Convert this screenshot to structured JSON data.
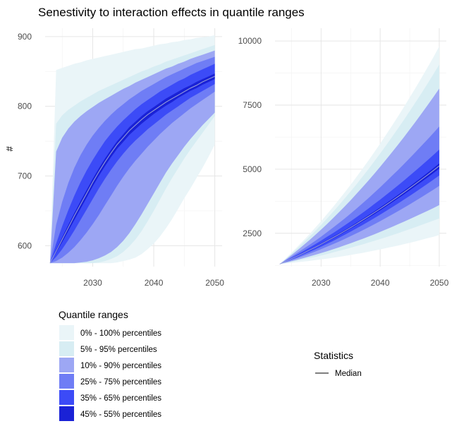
{
  "chart_data": {
    "title": "Senestivity to interaction effects in quantile ranges",
    "type": "area",
    "grid": true,
    "panels": [
      {
        "ylabel": "#",
        "xlim": [
          2022.2,
          2051.2
        ],
        "ylim": [
          570,
          912
        ],
        "x_ticks": [
          2030,
          2040,
          2050
        ],
        "y_ticks": [
          600,
          700,
          800,
          900
        ],
        "x": [
          2023,
          2024,
          2025,
          2026,
          2027,
          2028,
          2029,
          2030,
          2031,
          2032,
          2033,
          2034,
          2035,
          2036,
          2037,
          2038,
          2039,
          2040,
          2041,
          2042,
          2043,
          2044,
          2045,
          2046,
          2047,
          2048,
          2049,
          2050
        ],
        "bands": {
          "p0": [
            575,
            575,
            575,
            575,
            575,
            575,
            575,
            575,
            575,
            575,
            575,
            576,
            578,
            580,
            583,
            588,
            595,
            603,
            613,
            625,
            638,
            653,
            668,
            682,
            697,
            712,
            728,
            745
          ],
          "p5": [
            575,
            575,
            575,
            575,
            575,
            575,
            575,
            575,
            576,
            578,
            581,
            585,
            591,
            599,
            609,
            621,
            635,
            650,
            666,
            682,
            697,
            711,
            725,
            738,
            750,
            762,
            774,
            786
          ],
          "p10": [
            575,
            575,
            575,
            575,
            575,
            576,
            577,
            579,
            582,
            586,
            591,
            598,
            607,
            618,
            631,
            645,
            660,
            675,
            690,
            705,
            718,
            730,
            742,
            753,
            763,
            773,
            782,
            791
          ],
          "p25": [
            575,
            578,
            583,
            590,
            598,
            608,
            619,
            631,
            644,
            658,
            672,
            686,
            699,
            711,
            722,
            732,
            742,
            751,
            760,
            768,
            776,
            783,
            790,
            797,
            803,
            809,
            815,
            821
          ],
          "p35": [
            575,
            584,
            595,
            608,
            622,
            637,
            652,
            667,
            682,
            696,
            709,
            721,
            732,
            742,
            751,
            759,
            767,
            774,
            781,
            788,
            794,
            800,
            806,
            812,
            817,
            822,
            827,
            832
          ],
          "p45": [
            575,
            590,
            605,
            621,
            637,
            653,
            669,
            685,
            700,
            714,
            727,
            739,
            749,
            759,
            767,
            775,
            782,
            789,
            795,
            801,
            806,
            812,
            817,
            822,
            826,
            831,
            835,
            839
          ],
          "median": [
            575,
            592,
            609,
            626,
            643,
            659,
            675,
            691,
            706,
            720,
            733,
            745,
            755,
            765,
            773,
            781,
            788,
            794,
            800,
            806,
            811,
            816,
            821,
            826,
            830,
            835,
            839,
            843
          ],
          "p55": [
            575,
            594,
            612,
            630,
            647,
            664,
            680,
            696,
            711,
            725,
            738,
            750,
            760,
            770,
            778,
            786,
            793,
            799,
            805,
            811,
            816,
            821,
            826,
            830,
            835,
            839,
            843,
            847
          ],
          "p65": [
            575,
            603,
            628,
            651,
            672,
            691,
            708,
            723,
            737,
            750,
            761,
            771,
            780,
            788,
            796,
            803,
            809,
            815,
            821,
            826,
            831,
            836,
            840,
            845,
            849,
            853,
            857,
            861
          ],
          "p75": [
            575,
            630,
            663,
            690,
            712,
            730,
            745,
            758,
            769,
            779,
            788,
            796,
            803,
            810,
            816,
            822,
            827,
            832,
            837,
            842,
            846,
            850,
            854,
            858,
            862,
            865,
            868,
            871
          ],
          "p90": [
            575,
            735,
            755,
            768,
            778,
            786,
            793,
            799,
            805,
            810,
            815,
            820,
            825,
            829,
            834,
            838,
            842,
            846,
            850,
            854,
            857,
            861,
            864,
            868,
            871,
            874,
            877,
            880
          ],
          "p95": [
            575,
            775,
            787,
            795,
            801,
            807,
            812,
            817,
            822,
            826,
            830,
            834,
            838,
            842,
            846,
            850,
            853,
            857,
            860,
            864,
            867,
            870,
            873,
            876,
            879,
            882,
            885,
            888
          ],
          "p100": [
            575,
            852,
            855,
            858,
            861,
            863,
            866,
            868,
            870,
            872,
            874,
            876,
            878,
            880,
            882,
            883,
            885,
            887,
            889,
            890,
            892,
            893,
            895,
            896,
            898,
            899,
            900,
            902
          ]
        }
      },
      {
        "ylabel": "",
        "xlim": [
          2022.2,
          2051.2
        ],
        "ylim": [
          1200,
          10500
        ],
        "x_ticks": [
          2030,
          2040,
          2050
        ],
        "y_ticks": [
          2500,
          5000,
          7500,
          10000
        ],
        "x": [
          2023,
          2024,
          2025,
          2026,
          2027,
          2028,
          2029,
          2030,
          2031,
          2032,
          2033,
          2034,
          2035,
          2036,
          2037,
          2038,
          2039,
          2040,
          2041,
          2042,
          2043,
          2044,
          2045,
          2046,
          2047,
          2048,
          2049,
          2050
        ],
        "bands": {
          "p0": [
            1300,
            1320,
            1345,
            1370,
            1395,
            1420,
            1450,
            1480,
            1510,
            1545,
            1580,
            1615,
            1655,
            1695,
            1735,
            1780,
            1825,
            1870,
            1920,
            1970,
            2020,
            2075,
            2130,
            2185,
            2245,
            2305,
            2365,
            2430
          ],
          "p5": [
            1300,
            1340,
            1385,
            1430,
            1480,
            1530,
            1580,
            1635,
            1690,
            1750,
            1810,
            1870,
            1935,
            2000,
            2065,
            2135,
            2205,
            2275,
            2350,
            2425,
            2500,
            2580,
            2660,
            2740,
            2825,
            2910,
            2995,
            3080
          ],
          "p10": [
            1300,
            1355,
            1410,
            1470,
            1530,
            1595,
            1660,
            1730,
            1800,
            1875,
            1950,
            2030,
            2110,
            2195,
            2280,
            2370,
            2460,
            2555,
            2650,
            2750,
            2850,
            2950,
            3055,
            3160,
            3265,
            3375,
            3485,
            3600
          ],
          "p25": [
            1300,
            1375,
            1450,
            1530,
            1615,
            1700,
            1790,
            1880,
            1975,
            2075,
            2175,
            2280,
            2390,
            2500,
            2615,
            2730,
            2850,
            2975,
            3100,
            3230,
            3360,
            3495,
            3630,
            3770,
            3910,
            4055,
            4200,
            4350
          ],
          "p35": [
            1300,
            1390,
            1480,
            1570,
            1670,
            1770,
            1870,
            1980,
            2090,
            2200,
            2320,
            2440,
            2565,
            2690,
            2820,
            2955,
            3090,
            3230,
            3370,
            3515,
            3660,
            3810,
            3960,
            4115,
            4270,
            4430,
            4590,
            4755
          ],
          "p45": [
            1300,
            1400,
            1500,
            1600,
            1710,
            1820,
            1935,
            2050,
            2170,
            2295,
            2420,
            2550,
            2685,
            2820,
            2960,
            3100,
            3245,
            3395,
            3545,
            3700,
            3855,
            4015,
            4175,
            4340,
            4505,
            4675,
            4845,
            5020
          ],
          "median": [
            1300,
            1405,
            1510,
            1615,
            1725,
            1840,
            1955,
            2075,
            2200,
            2325,
            2455,
            2590,
            2725,
            2865,
            3010,
            3155,
            3305,
            3455,
            3610,
            3770,
            3930,
            4095,
            4260,
            4430,
            4600,
            4775,
            4950,
            5130
          ],
          "p55": [
            1300,
            1410,
            1520,
            1630,
            1745,
            1860,
            1980,
            2105,
            2230,
            2360,
            2490,
            2625,
            2765,
            2910,
            3055,
            3205,
            3355,
            3510,
            3670,
            3830,
            3995,
            4160,
            4330,
            4505,
            4680,
            4860,
            5040,
            5225
          ],
          "p65": [
            1300,
            1425,
            1550,
            1675,
            1805,
            1940,
            2075,
            2215,
            2360,
            2505,
            2655,
            2810,
            2970,
            3130,
            3295,
            3465,
            3640,
            3815,
            3995,
            4180,
            4365,
            4555,
            4750,
            4945,
            5145,
            5350,
            5555,
            5765
          ],
          "p75": [
            1300,
            1445,
            1590,
            1740,
            1890,
            2045,
            2205,
            2370,
            2540,
            2715,
            2895,
            3080,
            3270,
            3465,
            3665,
            3870,
            4080,
            4295,
            4515,
            4740,
            4965,
            5195,
            5430,
            5670,
            5915,
            6160,
            6410,
            6665
          ],
          "p90": [
            1300,
            1475,
            1655,
            1840,
            2030,
            2230,
            2435,
            2645,
            2860,
            3085,
            3315,
            3550,
            3790,
            4040,
            4295,
            4555,
            4820,
            5095,
            5375,
            5660,
            5950,
            6245,
            6550,
            6855,
            7170,
            7490,
            7815,
            8145
          ],
          "p95": [
            1300,
            1500,
            1705,
            1915,
            2135,
            2360,
            2590,
            2830,
            3075,
            3330,
            3590,
            3860,
            4135,
            4415,
            4705,
            5000,
            5305,
            5615,
            5930,
            6255,
            6585,
            6920,
            7265,
            7615,
            7970,
            8335,
            8705,
            9080
          ],
          "p100": [
            1300,
            1520,
            1745,
            1975,
            2215,
            2460,
            2715,
            2975,
            3245,
            3520,
            3805,
            4095,
            4395,
            4700,
            5015,
            5335,
            5665,
            6000,
            6345,
            6695,
            7055,
            7420,
            7795,
            8175,
            8565,
            8965,
            9370,
            9790
          ]
        }
      }
    ],
    "legend": {
      "title": "Quantile ranges",
      "placement": "bottom-left",
      "entries": [
        {
          "label": "0% - 100% percentiles",
          "color": "#EAF5F8",
          "lower": "p0",
          "upper": "p100"
        },
        {
          "label": "5% - 95% percentiles",
          "color": "#D7EDF3",
          "lower": "p5",
          "upper": "p95"
        },
        {
          "label": "10% - 90% percentiles",
          "color": "#9DA7F4",
          "lower": "p10",
          "upper": "p90"
        },
        {
          "label": "25% - 75% percentiles",
          "color": "#6F7DF5",
          "lower": "p25",
          "upper": "p75"
        },
        {
          "label": "35% - 65% percentiles",
          "color": "#3C4BF7",
          "lower": "p35",
          "upper": "p65"
        },
        {
          "label": "45% - 55% percentiles",
          "color": "#1A22D6",
          "lower": "p45",
          "upper": "p55"
        }
      ]
    },
    "statistics_legend": {
      "title": "Statistics",
      "placement": "bottom-right",
      "entries": [
        {
          "label": "Median",
          "color": "#9CA3D8"
        }
      ]
    }
  }
}
